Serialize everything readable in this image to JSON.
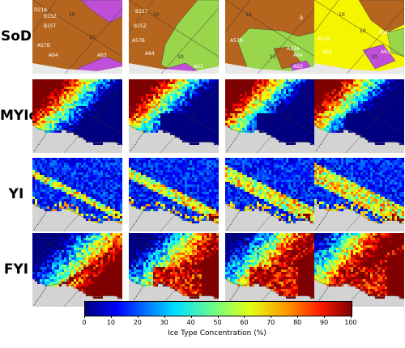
{
  "rows": [
    {
      "label": "SoD"
    },
    {
      "label": "MYIc"
    },
    {
      "label": "YI"
    },
    {
      "label": "FYI"
    }
  ],
  "sod_labels": [
    [
      "D21A",
      "B15Z",
      "B15T",
      "A57B",
      "A64",
      "A63",
      "10",
      "10"
    ],
    [
      "B15T",
      "B15Z",
      "A57B",
      "A64",
      "A63",
      "10",
      "10"
    ],
    [
      "B",
      "A57B",
      "A23A",
      "A64",
      "A63",
      "10",
      "10"
    ],
    [
      "B16",
      "A57B",
      "A64",
      "A63",
      "10",
      "10",
      "10"
    ]
  ],
  "colorbar": {
    "title": "Ice Type Concentration (%)",
    "ticks": [
      "0",
      "10",
      "20",
      "30",
      "40",
      "50",
      "60",
      "70",
      "80",
      "90",
      "100"
    ]
  },
  "chart_data": {
    "type": "heatmap",
    "layout": "4 rows x 4 columns of map panels",
    "row_labels": [
      "SoD",
      "MYIc",
      "YI",
      "FYI"
    ],
    "value_range": [
      0,
      100
    ],
    "colorbar_label": "Ice Type Concentration (%)",
    "colorbar_ticks": [
      0,
      10,
      20,
      30,
      40,
      50,
      60,
      70,
      80,
      90,
      100
    ],
    "colormap": "jet",
    "panels": [
      {
        "row": "SoD",
        "column": 1,
        "kind": "stage-of-development map",
        "dominant_colors": [
          "#b5651d",
          "#c04fd8",
          "#9ad64b"
        ]
      },
      {
        "row": "SoD",
        "column": 2,
        "kind": "stage-of-development map",
        "dominant_colors": [
          "#b5651d",
          "#9ad64b",
          "#c04fd8"
        ]
      },
      {
        "row": "SoD",
        "column": 3,
        "kind": "stage-of-development map",
        "dominant_colors": [
          "#b5651d",
          "#9ad64b",
          "#c04fd8"
        ]
      },
      {
        "row": "SoD",
        "column": 4,
        "kind": "stage-of-development map",
        "dominant_colors": [
          "#b5651d",
          "#ffff00",
          "#c04fd8",
          "#9ad64b"
        ]
      }
    ]
  }
}
